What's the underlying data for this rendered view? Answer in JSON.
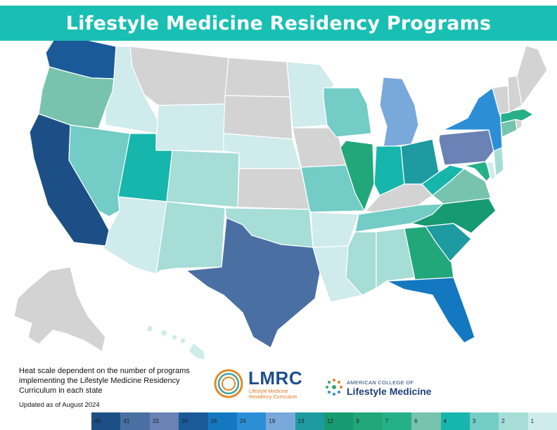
{
  "title": "Lifestyle Medicine Residency Programs",
  "note": "Heat scale dependent on the number of programs implementing the Lifestyle Medicine Residency Curriculum in each state",
  "updated": "Updated as of August 2024",
  "logos": {
    "lmrc": {
      "word": "LMRC",
      "line1": "Lifestyle Medicine",
      "line2": "Residency Curriculum"
    },
    "aclm": {
      "top": "AMERICAN COLLEGE OF",
      "main": "Lifestyle Medicine"
    }
  },
  "legend": [
    {
      "label": "49",
      "color": "#1c4f85"
    },
    {
      "label": "41",
      "color": "#4a6fa3"
    },
    {
      "label": "33",
      "color": "#6a82b5"
    },
    {
      "label": "26",
      "color": "#1a5a99"
    },
    {
      "label": "26",
      "color": "#1478c1"
    },
    {
      "label": "24",
      "color": "#2c8fd6"
    },
    {
      "label": "19",
      "color": "#79a8db"
    },
    {
      "label": "13",
      "color": "#1d9ba0"
    },
    {
      "label": "12",
      "color": "#179a71"
    },
    {
      "label": "9",
      "color": "#22a77b"
    },
    {
      "label": "7",
      "color": "#26b08a"
    },
    {
      "label": "6",
      "color": "#78c3ad"
    },
    {
      "label": "4",
      "color": "#16b6ad"
    },
    {
      "label": "3",
      "color": "#73ccc6"
    },
    {
      "label": "2",
      "color": "#a6ddd6"
    },
    {
      "label": "1",
      "color": "#cfebeb"
    }
  ],
  "colors": {
    "none": "#d3d3d3",
    "title_bar": "#19bfb2"
  },
  "states": [
    {
      "name": "California",
      "level": "49",
      "color": "#1c4f85"
    },
    {
      "name": "Texas",
      "level": "41",
      "color": "#4a6fa3"
    },
    {
      "name": "Pennsylvania",
      "level": "33",
      "color": "#6a82b5"
    },
    {
      "name": "Washington",
      "level": "26",
      "color": "#1a5a99"
    },
    {
      "name": "Florida",
      "level": "26",
      "color": "#1478c1"
    },
    {
      "name": "New York",
      "level": "24",
      "color": "#2c8fd6"
    },
    {
      "name": "Michigan",
      "level": "19",
      "color": "#79a8db"
    },
    {
      "name": "Ohio",
      "level": "13",
      "color": "#1d9ba0"
    },
    {
      "name": "South Carolina",
      "level": "13",
      "color": "#1d9ba0"
    },
    {
      "name": "North Carolina",
      "level": "12",
      "color": "#179a71"
    },
    {
      "name": "Illinois",
      "level": "9",
      "color": "#22a77b"
    },
    {
      "name": "Georgia",
      "level": "9",
      "color": "#22a77b"
    },
    {
      "name": "Massachusetts",
      "level": "7",
      "color": "#26b08a"
    },
    {
      "name": "Maryland",
      "level": "7",
      "color": "#26b08a"
    },
    {
      "name": "Oregon",
      "level": "6",
      "color": "#78c3ad"
    },
    {
      "name": "Virginia",
      "level": "6",
      "color": "#78c3ad"
    },
    {
      "name": "Connecticut",
      "level": "6",
      "color": "#78c3ad"
    },
    {
      "name": "Utah",
      "level": "4",
      "color": "#16b6ad"
    },
    {
      "name": "Indiana",
      "level": "4",
      "color": "#16b6ad"
    },
    {
      "name": "West Virginia",
      "level": "4",
      "color": "#16b6ad"
    },
    {
      "name": "Nevada",
      "level": "3",
      "color": "#73ccc6"
    },
    {
      "name": "Wisconsin",
      "level": "3",
      "color": "#73ccc6"
    },
    {
      "name": "Missouri",
      "level": "3",
      "color": "#73ccc6"
    },
    {
      "name": "Tennessee",
      "level": "3",
      "color": "#73ccc6"
    },
    {
      "name": "Colorado",
      "level": "2",
      "color": "#a6ddd6"
    },
    {
      "name": "New Mexico",
      "level": "2",
      "color": "#a6ddd6"
    },
    {
      "name": "Oklahoma",
      "level": "2",
      "color": "#a6ddd6"
    },
    {
      "name": "Mississippi",
      "level": "2",
      "color": "#a6ddd6"
    },
    {
      "name": "Alabama",
      "level": "2",
      "color": "#a6ddd6"
    },
    {
      "name": "New Jersey",
      "level": "2",
      "color": "#a6ddd6"
    },
    {
      "name": "Idaho",
      "level": "1",
      "color": "#cfebeb"
    },
    {
      "name": "Wyoming",
      "level": "1",
      "color": "#cfebeb"
    },
    {
      "name": "Arizona",
      "level": "1",
      "color": "#cfebeb"
    },
    {
      "name": "Nebraska",
      "level": "1",
      "color": "#cfebeb"
    },
    {
      "name": "Minnesota",
      "level": "1",
      "color": "#cfebeb"
    },
    {
      "name": "Arkansas",
      "level": "1",
      "color": "#cfebeb"
    },
    {
      "name": "Louisiana",
      "level": "1",
      "color": "#cfebeb"
    },
    {
      "name": "Hawaii",
      "level": "1",
      "color": "#cfebeb"
    },
    {
      "name": "Puerto Rico",
      "level": "1",
      "color": "#cfebeb"
    },
    {
      "name": "Delaware",
      "level": "1",
      "color": "#cfebeb"
    },
    {
      "name": "Montana",
      "level": "0",
      "color": "#d3d3d3"
    },
    {
      "name": "North Dakota",
      "level": "0",
      "color": "#d3d3d3"
    },
    {
      "name": "South Dakota",
      "level": "0",
      "color": "#d3d3d3"
    },
    {
      "name": "Kansas",
      "level": "0",
      "color": "#d3d3d3"
    },
    {
      "name": "Iowa",
      "level": "0",
      "color": "#d3d3d3"
    },
    {
      "name": "Kentucky",
      "level": "0",
      "color": "#d3d3d3"
    },
    {
      "name": "Maine",
      "level": "0",
      "color": "#d3d3d3"
    },
    {
      "name": "Vermont",
      "level": "0",
      "color": "#d3d3d3"
    },
    {
      "name": "New Hampshire",
      "level": "0",
      "color": "#d3d3d3"
    },
    {
      "name": "Alaska",
      "level": "0",
      "color": "#d3d3d3"
    },
    {
      "name": "Rhode Island",
      "level": "0",
      "color": "#d3d3d3"
    }
  ]
}
